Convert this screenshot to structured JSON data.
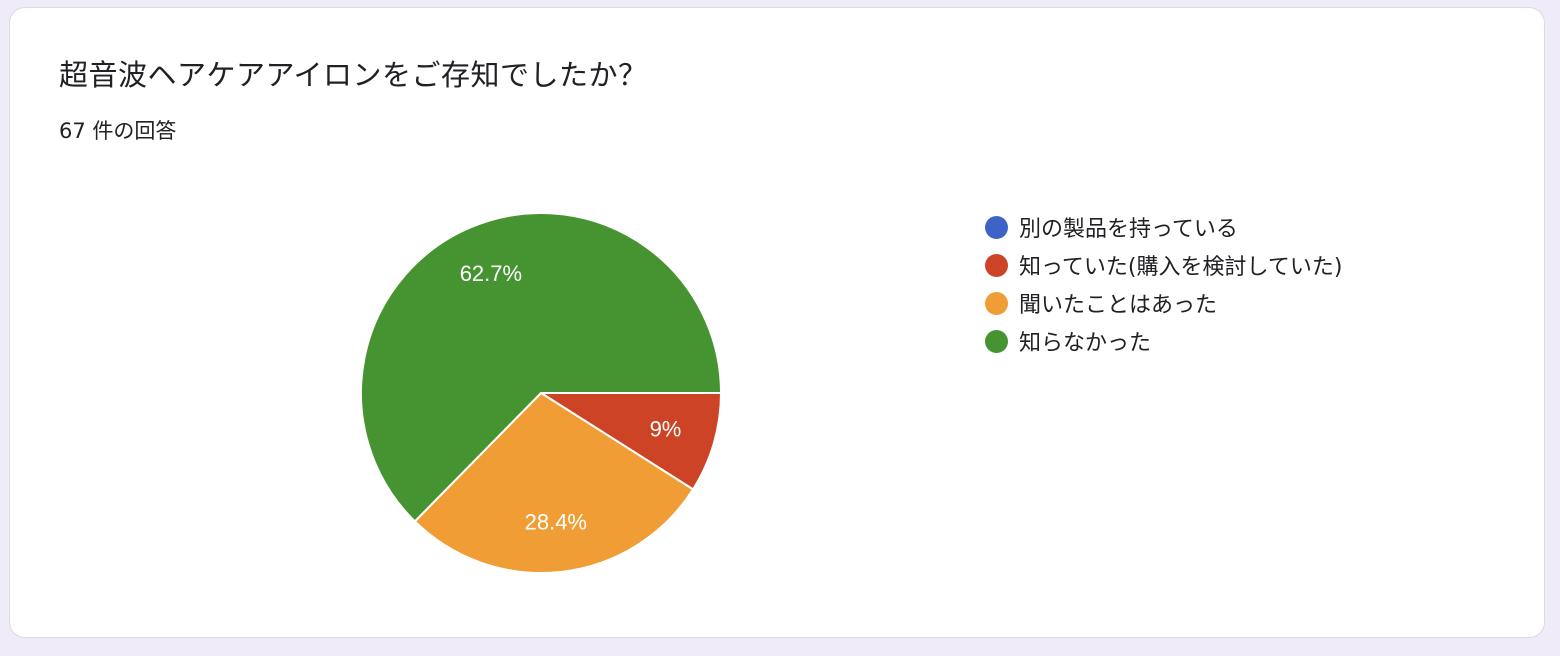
{
  "question": "超音波ヘアケアアイロンをご存知でしたか？",
  "response_count": "67 件の回答",
  "chart_data": {
    "type": "pie",
    "categories": [
      "別の製品を持っている",
      "知っていた(購入を検討していた)",
      "聞いたことはあった",
      "知らなかった"
    ],
    "values": [
      0,
      9,
      28.4,
      62.7
    ],
    "value_labels": [
      "",
      "9%",
      "28.4%",
      "62.7%"
    ],
    "colors": [
      "#3e63c8",
      "#cc4425",
      "#f09d36",
      "#469331"
    ],
    "legend_position": "right"
  }
}
